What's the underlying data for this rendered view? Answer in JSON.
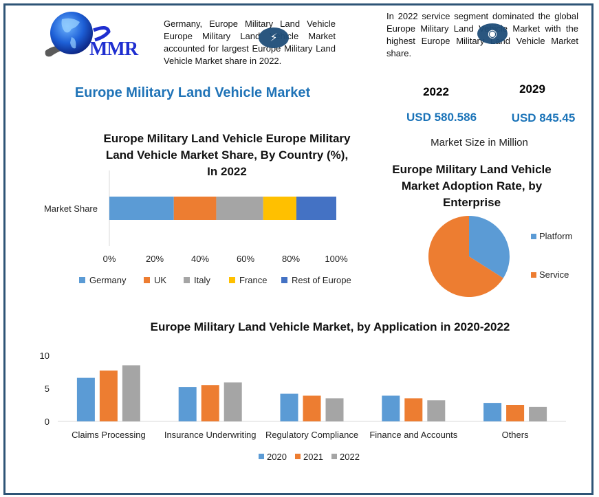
{
  "logo": {
    "text": "MMR",
    "icon": "globe-icon"
  },
  "header": {
    "paragraph_left": "Germany, Europe Military Land Vehicle Europe Military Land Vehicle Market accounted for largest Europe Military Land Vehicle Market share in 2022.",
    "paragraph_right": "In 2022 service segment dominated the global Europe Military Land Vehicle Market with the highest Europe Military Land Vehicle Market share.",
    "badge_left_icon": "lightning-icon",
    "badge_right_icon": "swirl-icon"
  },
  "main_title": "Europe Military Land Vehicle Market",
  "market_size": {
    "year_start": "2022",
    "year_end": "2029",
    "value_start": "USD 580.586",
    "value_end": "USD 845.45",
    "caption": "Market Size in Million"
  },
  "colors": {
    "blue": "#5b9bd5",
    "orange": "#ed7d31",
    "gray": "#a5a5a5",
    "yellow": "#ffc000",
    "darkblue": "#4472c4",
    "title_blue": "#1f73b7",
    "frame": "#2e5476"
  },
  "chart_data": [
    {
      "type": "bar",
      "orientation": "horizontal-stacked-100",
      "title": "Europe Military Land Vehicle Europe Military Land Vehicle Market Share, By Country (%), In 2022",
      "title_lines": [
        "Europe Military Land Vehicle Europe Military",
        "Land Vehicle Market Share, By Country (%),",
        "In 2022"
      ],
      "categories": [
        "Market Share"
      ],
      "series": [
        {
          "name": "Germany",
          "values": [
            28.4
          ],
          "color": "#5b9bd5"
        },
        {
          "name": "UK",
          "values": [
            18.7
          ],
          "color": "#ed7d31"
        },
        {
          "name": "Italy",
          "values": [
            20.7
          ],
          "color": "#a5a5a5"
        },
        {
          "name": "France",
          "values": [
            14.6
          ],
          "color": "#ffc000"
        },
        {
          "name": "Rest of Europe",
          "values": [
            17.6
          ],
          "color": "#4472c4"
        }
      ],
      "xlim": [
        0,
        100
      ],
      "xticks": [
        "0%",
        "20%",
        "40%",
        "60%",
        "80%",
        "100%"
      ],
      "xlabel": "",
      "ylabel": "",
      "legend": "bottom",
      "grid": false
    },
    {
      "type": "pie",
      "title": "Europe Military Land Vehicle Market Adoption Rate, by Enterprise",
      "title_lines": [
        "Europe Military Land Vehicle",
        "Market Adoption Rate, by",
        "Enterprise"
      ],
      "slices": [
        {
          "label": "Platform",
          "value": 34,
          "color": "#5b9bd5"
        },
        {
          "label": "Service",
          "value": 66,
          "color": "#ed7d31"
        }
      ],
      "legend": "right"
    },
    {
      "type": "bar",
      "title": "Europe Military Land Vehicle Market, by Application in 2020-2022",
      "categories": [
        "Claims Processing",
        "Insurance Underwriting",
        "Regulatory Compliance",
        "Finance and Accounts",
        "Others"
      ],
      "series": [
        {
          "name": "2020",
          "values": [
            6.6,
            5.2,
            4.2,
            3.9,
            2.8
          ],
          "color": "#5b9bd5"
        },
        {
          "name": "2021",
          "values": [
            7.7,
            5.5,
            3.9,
            3.5,
            2.5
          ],
          "color": "#ed7d31"
        },
        {
          "name": "2022",
          "values": [
            8.5,
            5.9,
            3.5,
            3.2,
            2.2
          ],
          "color": "#a5a5a5"
        }
      ],
      "ylim": [
        0,
        10
      ],
      "yticks": [
        "0",
        "5",
        "10"
      ],
      "xlabel": "",
      "ylabel": "",
      "legend": "bottom",
      "grid": false
    }
  ]
}
